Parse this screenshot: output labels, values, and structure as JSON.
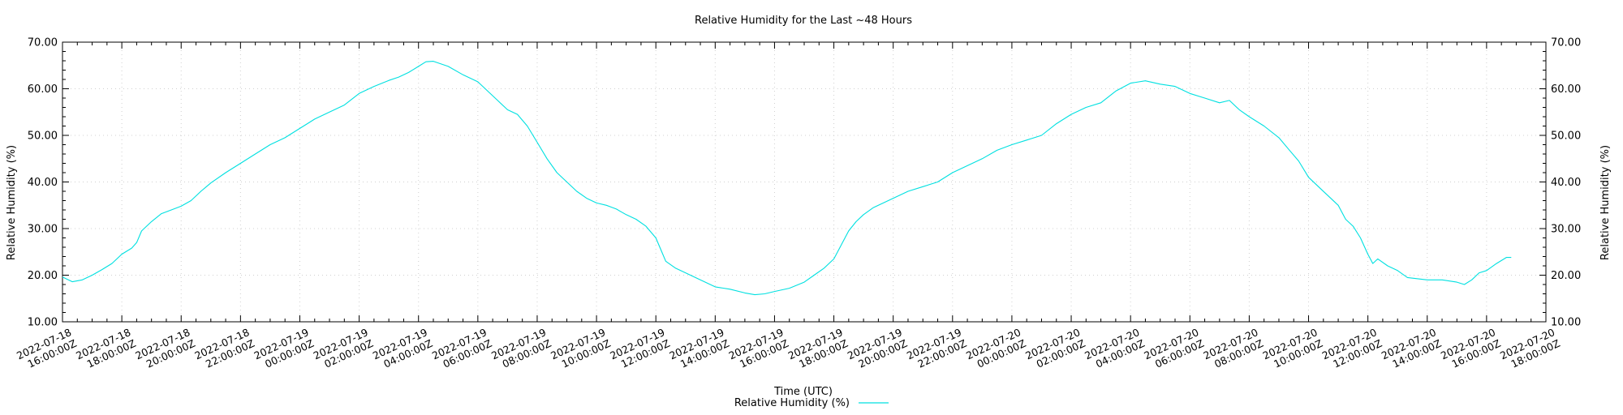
{
  "chart_data": {
    "type": "line",
    "title": "Relative Humidity for the Last ~48 Hours",
    "xlabel": "Time (UTC)",
    "ylabel": "Relative Humidity (%)",
    "y2label": "Relative Humidity (%)",
    "ylim": [
      10,
      70
    ],
    "xlim": [
      "2022-07-18T16:00:00Z",
      "2022-07-20T18:00:00Z"
    ],
    "grid": true,
    "legend_position": "bottom",
    "y_ticks": [
      "10.00",
      "20.00",
      "30.00",
      "40.00",
      "50.00",
      "60.00",
      "70.00"
    ],
    "x_ticks": [
      [
        "2022-07-18",
        "16:00:00Z"
      ],
      [
        "2022-07-18",
        "18:00:00Z"
      ],
      [
        "2022-07-18",
        "20:00:00Z"
      ],
      [
        "2022-07-18",
        "22:00:00Z"
      ],
      [
        "2022-07-19",
        "00:00:00Z"
      ],
      [
        "2022-07-19",
        "02:00:00Z"
      ],
      [
        "2022-07-19",
        "04:00:00Z"
      ],
      [
        "2022-07-19",
        "06:00:00Z"
      ],
      [
        "2022-07-19",
        "08:00:00Z"
      ],
      [
        "2022-07-19",
        "10:00:00Z"
      ],
      [
        "2022-07-19",
        "12:00:00Z"
      ],
      [
        "2022-07-19",
        "14:00:00Z"
      ],
      [
        "2022-07-19",
        "16:00:00Z"
      ],
      [
        "2022-07-19",
        "18:00:00Z"
      ],
      [
        "2022-07-19",
        "20:00:00Z"
      ],
      [
        "2022-07-19",
        "22:00:00Z"
      ],
      [
        "2022-07-20",
        "00:00:00Z"
      ],
      [
        "2022-07-20",
        "02:00:00Z"
      ],
      [
        "2022-07-20",
        "04:00:00Z"
      ],
      [
        "2022-07-20",
        "06:00:00Z"
      ],
      [
        "2022-07-20",
        "08:00:00Z"
      ],
      [
        "2022-07-20",
        "10:00:00Z"
      ],
      [
        "2022-07-20",
        "12:00:00Z"
      ],
      [
        "2022-07-20",
        "14:00:00Z"
      ],
      [
        "2022-07-20",
        "16:00:00Z"
      ],
      [
        "2022-07-20",
        "18:00:00Z"
      ]
    ],
    "series": [
      {
        "name": "Relative Humidity (%)",
        "color": "#00e0e0",
        "points": [
          [
            "2022-07-18T16:00:00Z",
            19.6
          ],
          [
            "2022-07-18T16:20:00Z",
            18.6
          ],
          [
            "2022-07-18T16:40:00Z",
            19.0
          ],
          [
            "2022-07-18T17:00:00Z",
            20.0
          ],
          [
            "2022-07-18T17:20:00Z",
            21.2
          ],
          [
            "2022-07-18T17:40:00Z",
            22.5
          ],
          [
            "2022-07-18T18:00:00Z",
            24.5
          ],
          [
            "2022-07-18T18:20:00Z",
            25.8
          ],
          [
            "2022-07-18T18:30:00Z",
            27.0
          ],
          [
            "2022-07-18T18:40:00Z",
            29.5
          ],
          [
            "2022-07-18T19:00:00Z",
            31.5
          ],
          [
            "2022-07-18T19:20:00Z",
            33.2
          ],
          [
            "2022-07-18T19:40:00Z",
            34.0
          ],
          [
            "2022-07-18T20:00:00Z",
            34.8
          ],
          [
            "2022-07-18T20:20:00Z",
            36.0
          ],
          [
            "2022-07-18T20:40:00Z",
            38.0
          ],
          [
            "2022-07-18T21:00:00Z",
            39.8
          ],
          [
            "2022-07-18T21:30:00Z",
            42.0
          ],
          [
            "2022-07-18T22:00:00Z",
            44.0
          ],
          [
            "2022-07-18T22:30:00Z",
            46.0
          ],
          [
            "2022-07-18T23:00:00Z",
            48.0
          ],
          [
            "2022-07-18T23:30:00Z",
            49.5
          ],
          [
            "2022-07-19T00:00:00Z",
            51.5
          ],
          [
            "2022-07-19T00:30:00Z",
            53.5
          ],
          [
            "2022-07-19T01:00:00Z",
            55.0
          ],
          [
            "2022-07-19T01:30:00Z",
            56.5
          ],
          [
            "2022-07-19T02:00:00Z",
            59.0
          ],
          [
            "2022-07-19T02:30:00Z",
            60.5
          ],
          [
            "2022-07-19T03:00:00Z",
            61.8
          ],
          [
            "2022-07-19T03:20:00Z",
            62.5
          ],
          [
            "2022-07-19T03:40:00Z",
            63.5
          ],
          [
            "2022-07-19T04:00:00Z",
            64.8
          ],
          [
            "2022-07-19T04:15:00Z",
            65.8
          ],
          [
            "2022-07-19T04:30:00Z",
            65.9
          ],
          [
            "2022-07-19T05:00:00Z",
            64.8
          ],
          [
            "2022-07-19T05:30:00Z",
            63.0
          ],
          [
            "2022-07-19T06:00:00Z",
            61.5
          ],
          [
            "2022-07-19T06:20:00Z",
            59.5
          ],
          [
            "2022-07-19T06:40:00Z",
            57.5
          ],
          [
            "2022-07-19T07:00:00Z",
            55.5
          ],
          [
            "2022-07-19T07:20:00Z",
            54.5
          ],
          [
            "2022-07-19T07:40:00Z",
            52.0
          ],
          [
            "2022-07-19T08:00:00Z",
            48.5
          ],
          [
            "2022-07-19T08:20:00Z",
            45.0
          ],
          [
            "2022-07-19T08:40:00Z",
            42.0
          ],
          [
            "2022-07-19T09:00:00Z",
            40.0
          ],
          [
            "2022-07-19T09:20:00Z",
            38.0
          ],
          [
            "2022-07-19T09:40:00Z",
            36.5
          ],
          [
            "2022-07-19T10:00:00Z",
            35.5
          ],
          [
            "2022-07-19T10:20:00Z",
            35.0
          ],
          [
            "2022-07-19T10:40:00Z",
            34.2
          ],
          [
            "2022-07-19T11:00:00Z",
            33.0
          ],
          [
            "2022-07-19T11:20:00Z",
            32.0
          ],
          [
            "2022-07-19T11:40:00Z",
            30.5
          ],
          [
            "2022-07-19T12:00:00Z",
            28.0
          ],
          [
            "2022-07-19T12:10:00Z",
            25.5
          ],
          [
            "2022-07-19T12:20:00Z",
            23.0
          ],
          [
            "2022-07-19T12:40:00Z",
            21.5
          ],
          [
            "2022-07-19T13:00:00Z",
            20.5
          ],
          [
            "2022-07-19T13:20:00Z",
            19.5
          ],
          [
            "2022-07-19T13:40:00Z",
            18.5
          ],
          [
            "2022-07-19T14:00:00Z",
            17.5
          ],
          [
            "2022-07-19T14:30:00Z",
            17.0
          ],
          [
            "2022-07-19T15:00:00Z",
            16.2
          ],
          [
            "2022-07-19T15:20:00Z",
            15.8
          ],
          [
            "2022-07-19T15:40:00Z",
            16.0
          ],
          [
            "2022-07-19T16:00:00Z",
            16.5
          ],
          [
            "2022-07-19T16:30:00Z",
            17.2
          ],
          [
            "2022-07-19T17:00:00Z",
            18.5
          ],
          [
            "2022-07-19T17:20:00Z",
            20.0
          ],
          [
            "2022-07-19T17:40:00Z",
            21.5
          ],
          [
            "2022-07-19T18:00:00Z",
            23.5
          ],
          [
            "2022-07-19T18:15:00Z",
            26.5
          ],
          [
            "2022-07-19T18:30:00Z",
            29.5
          ],
          [
            "2022-07-19T18:45:00Z",
            31.5
          ],
          [
            "2022-07-19T19:00:00Z",
            33.0
          ],
          [
            "2022-07-19T19:20:00Z",
            34.5
          ],
          [
            "2022-07-19T19:40:00Z",
            35.5
          ],
          [
            "2022-07-19T20:00:00Z",
            36.5
          ],
          [
            "2022-07-19T20:30:00Z",
            38.0
          ],
          [
            "2022-07-19T21:00:00Z",
            39.0
          ],
          [
            "2022-07-19T21:30:00Z",
            40.0
          ],
          [
            "2022-07-19T22:00:00Z",
            42.0
          ],
          [
            "2022-07-19T22:30:00Z",
            43.5
          ],
          [
            "2022-07-19T23:00:00Z",
            45.0
          ],
          [
            "2022-07-19T23:30:00Z",
            46.8
          ],
          [
            "2022-07-20T00:00:00Z",
            48.0
          ],
          [
            "2022-07-20T00:30:00Z",
            49.0
          ],
          [
            "2022-07-20T01:00:00Z",
            50.0
          ],
          [
            "2022-07-20T01:30:00Z",
            52.5
          ],
          [
            "2022-07-20T02:00:00Z",
            54.5
          ],
          [
            "2022-07-20T02:30:00Z",
            56.0
          ],
          [
            "2022-07-20T03:00:00Z",
            57.0
          ],
          [
            "2022-07-20T03:30:00Z",
            59.5
          ],
          [
            "2022-07-20T04:00:00Z",
            61.2
          ],
          [
            "2022-07-20T04:30:00Z",
            61.7
          ],
          [
            "2022-07-20T05:00:00Z",
            61.0
          ],
          [
            "2022-07-20T05:30:00Z",
            60.5
          ],
          [
            "2022-07-20T06:00:00Z",
            59.0
          ],
          [
            "2022-07-20T06:30:00Z",
            58.0
          ],
          [
            "2022-07-20T07:00:00Z",
            57.0
          ],
          [
            "2022-07-20T07:20:00Z",
            57.5
          ],
          [
            "2022-07-20T07:40:00Z",
            55.5
          ],
          [
            "2022-07-20T08:00:00Z",
            54.0
          ],
          [
            "2022-07-20T08:30:00Z",
            52.0
          ],
          [
            "2022-07-20T09:00:00Z",
            49.5
          ],
          [
            "2022-07-20T09:20:00Z",
            47.0
          ],
          [
            "2022-07-20T09:40:00Z",
            44.5
          ],
          [
            "2022-07-20T10:00:00Z",
            41.0
          ],
          [
            "2022-07-20T10:20:00Z",
            39.0
          ],
          [
            "2022-07-20T10:40:00Z",
            37.0
          ],
          [
            "2022-07-20T11:00:00Z",
            35.0
          ],
          [
            "2022-07-20T11:15:00Z",
            32.0
          ],
          [
            "2022-07-20T11:30:00Z",
            30.5
          ],
          [
            "2022-07-20T11:45:00Z",
            28.0
          ],
          [
            "2022-07-20T12:00:00Z",
            24.5
          ],
          [
            "2022-07-20T12:10:00Z",
            22.5
          ],
          [
            "2022-07-20T12:20:00Z",
            23.5
          ],
          [
            "2022-07-20T12:40:00Z",
            22.0
          ],
          [
            "2022-07-20T13:00:00Z",
            21.0
          ],
          [
            "2022-07-20T13:20:00Z",
            19.5
          ],
          [
            "2022-07-20T14:00:00Z",
            19.0
          ],
          [
            "2022-07-20T14:30:00Z",
            19.0
          ],
          [
            "2022-07-20T15:00:00Z",
            18.5
          ],
          [
            "2022-07-20T15:15:00Z",
            18.0
          ],
          [
            "2022-07-20T15:30:00Z",
            19.0
          ],
          [
            "2022-07-20T15:45:00Z",
            20.5
          ],
          [
            "2022-07-20T16:00:00Z",
            21.0
          ],
          [
            "2022-07-20T16:20:00Z",
            22.5
          ],
          [
            "2022-07-20T16:40:00Z",
            23.8
          ],
          [
            "2022-07-20T16:50:00Z",
            23.8
          ]
        ]
      }
    ]
  }
}
